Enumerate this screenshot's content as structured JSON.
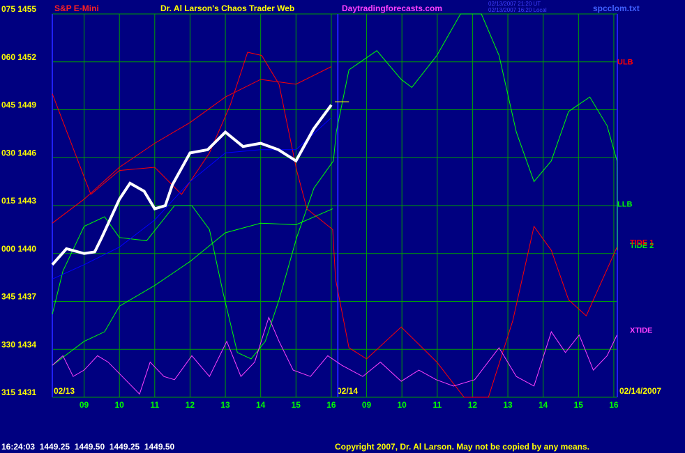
{
  "header": {
    "symbol": "S&P E-Mini",
    "title": "Dr. Al Larson's Chaos Trader Web",
    "site": "Daytradingforecasts.com",
    "time_ut": "02/13/2007 21:20 UT",
    "time_local": "02/13/2007 16:20 Local",
    "file": "spcclom.txt"
  },
  "footer": {
    "quote": "16:24:03  1449.25  1449.50  1449.25  1449.50",
    "copyright": "Copyright 2007, Dr. Al Larson. May not be copied by any means."
  },
  "dates": [
    "02/13",
    "02/14",
    "02/14/2007"
  ],
  "chart_data": {
    "type": "line",
    "xlim": [
      0.1,
      16.1
    ],
    "ylim": [
      1431,
      1455
    ],
    "xticks": [
      {
        "value": 1,
        "label": "09"
      },
      {
        "value": 2,
        "label": "10"
      },
      {
        "value": 3,
        "label": "11"
      },
      {
        "value": 4,
        "label": "12"
      },
      {
        "value": 5,
        "label": "13"
      },
      {
        "value": 6,
        "label": "14"
      },
      {
        "value": 7,
        "label": "15"
      },
      {
        "value": 8,
        "label": "16"
      },
      {
        "value": 9,
        "label": "09"
      },
      {
        "value": 10,
        "label": "10"
      },
      {
        "value": 11,
        "label": "11"
      },
      {
        "value": 12,
        "label": "12"
      },
      {
        "value": 13,
        "label": "13"
      },
      {
        "value": 14,
        "label": "14"
      },
      {
        "value": 15,
        "label": "15"
      },
      {
        "value": 16,
        "label": "16"
      }
    ],
    "yticks": [
      {
        "value": 1431,
        "label": "315 1431"
      },
      {
        "value": 1434,
        "label": "330 1434"
      },
      {
        "value": 1437,
        "label": "345 1437"
      },
      {
        "value": 1440,
        "label": "000 1440"
      },
      {
        "value": 1443,
        "label": "015 1443"
      },
      {
        "value": 1446,
        "label": "030 1446"
      },
      {
        "value": 1449,
        "label": "045 1449"
      },
      {
        "value": 1452,
        "label": "060 1452"
      },
      {
        "value": 1455,
        "label": "075 1455"
      }
    ],
    "grid": true,
    "series": [
      {
        "name": "ULB",
        "color": "#ff0000",
        "x": [
          0.1,
          1,
          2,
          3,
          4,
          5,
          6,
          7,
          8
        ],
        "values": [
          1441.9,
          1443.4,
          1445.4,
          1446.9,
          1448.2,
          1449.8,
          1450.9,
          1450.6,
          1451.7
        ]
      },
      {
        "name": "LLB",
        "color": "#00ff00",
        "x": [
          0.1,
          1,
          1.58,
          2,
          3,
          4,
          5,
          6,
          7,
          8.04
        ],
        "values": [
          1433.0,
          1434.5,
          1435.1,
          1436.7,
          1438.0,
          1439.5,
          1441.3,
          1441.9,
          1441.8,
          1442.8
        ]
      },
      {
        "name": "TIDE 2",
        "color": "#00ff00",
        "x": [
          0.1,
          0.4,
          1,
          1.58,
          2,
          2.77,
          3.56,
          4.05,
          4.55,
          4.94,
          5.34,
          5.73,
          6.13,
          6.52,
          7.02,
          7.51,
          8.06,
          8.14,
          8.5,
          9.29,
          9.98,
          10.28,
          10.99,
          11.66,
          12.25,
          12.75,
          13.24,
          13.74,
          14.23,
          14.72,
          15.32,
          15.81,
          16.09,
          16.1
        ],
        "values": [
          1436.2,
          1438.9,
          1441.7,
          1442.3,
          1441.0,
          1440.8,
          1443.0,
          1443.0,
          1441.5,
          1437.5,
          1433.8,
          1433.4,
          1434.5,
          1437.1,
          1441.0,
          1444.1,
          1445.8,
          1447.6,
          1451.5,
          1452.7,
          1450.9,
          1450.4,
          1452.4,
          1455.0,
          1455.0,
          1452.4,
          1447.6,
          1444.5,
          1445.8,
          1448.9,
          1449.8,
          1448.0,
          1445.8,
          1440.2
        ]
      },
      {
        "name": "TIDE 1",
        "color": "#ff0000",
        "x": [
          0.1,
          1.19,
          2,
          3,
          3.76,
          4.55,
          5.14,
          5.63,
          6.03,
          6.52,
          7.02,
          7.31,
          8.04,
          8.12,
          8.5,
          9,
          9.98,
          10.99,
          11.76,
          12.45,
          13.14,
          13.74,
          14.23,
          14.72,
          15.22,
          16.09
        ],
        "values": [
          1450.0,
          1443.7,
          1445.2,
          1445.4,
          1443.7,
          1446.3,
          1449.3,
          1452.6,
          1452.4,
          1450.6,
          1445.2,
          1442.8,
          1441.5,
          1438.4,
          1434.1,
          1433.4,
          1435.4,
          1433.2,
          1431.0,
          1431.0,
          1435.8,
          1441.7,
          1440.2,
          1437.1,
          1436.1,
          1440.4
        ]
      },
      {
        "name": "XTIDE",
        "color": "#ff40ff",
        "x": [
          0.1,
          0.4,
          0.69,
          1,
          1.38,
          1.68,
          2.08,
          2.57,
          2.87,
          3.26,
          3.56,
          4.05,
          4.55,
          5.04,
          5.44,
          5.83,
          6.23,
          6.52,
          6.92,
          7.41,
          7.9,
          8.3,
          8.89,
          9.39,
          9.98,
          10.48,
          10.97,
          11.46,
          12.06,
          12.75,
          13.24,
          13.74,
          14.23,
          14.63,
          15.02,
          15.42,
          15.81,
          16.09
        ],
        "values": [
          1433.0,
          1433.6,
          1432.3,
          1432.7,
          1433.6,
          1433.2,
          1432.3,
          1431.2,
          1433.2,
          1432.3,
          1432.1,
          1433.6,
          1432.3,
          1434.5,
          1432.3,
          1433.2,
          1436.0,
          1434.5,
          1432.7,
          1432.3,
          1433.6,
          1433.0,
          1432.3,
          1433.2,
          1432.0,
          1432.7,
          1432.1,
          1431.7,
          1432.1,
          1434.1,
          1432.3,
          1431.7,
          1435.1,
          1433.8,
          1434.9,
          1432.7,
          1433.6,
          1434.9
        ]
      },
      {
        "color": "#0000ff",
        "x": [
          0.1,
          1,
          2,
          3,
          4,
          5,
          6,
          7,
          8
        ],
        "values": [
          1438.4,
          1439.3,
          1440.4,
          1442.1,
          1444.5,
          1446.3,
          1446.5,
          1446.5,
          1448.5
        ]
      },
      {
        "color": "#ffffff",
        "x": [
          0.1,
          0.5,
          1,
          1.3,
          1.5,
          2,
          2.3,
          2.7,
          3,
          3.3,
          3.5,
          4,
          4.5,
          5,
          5.5,
          6,
          6.5,
          7,
          7.5,
          8
        ],
        "values": [
          1439.3,
          1440.3,
          1440.0,
          1440.1,
          1441.0,
          1443.4,
          1444.4,
          1443.9,
          1442.8,
          1443.0,
          1444.3,
          1446.3,
          1446.5,
          1447.6,
          1446.7,
          1446.9,
          1446.5,
          1445.8,
          1447.8,
          1449.3
        ]
      },
      {
        "color": "#ffff00",
        "x": [
          8.1,
          8.5
        ],
        "values": [
          1449.5,
          1449.5
        ]
      }
    ]
  }
}
